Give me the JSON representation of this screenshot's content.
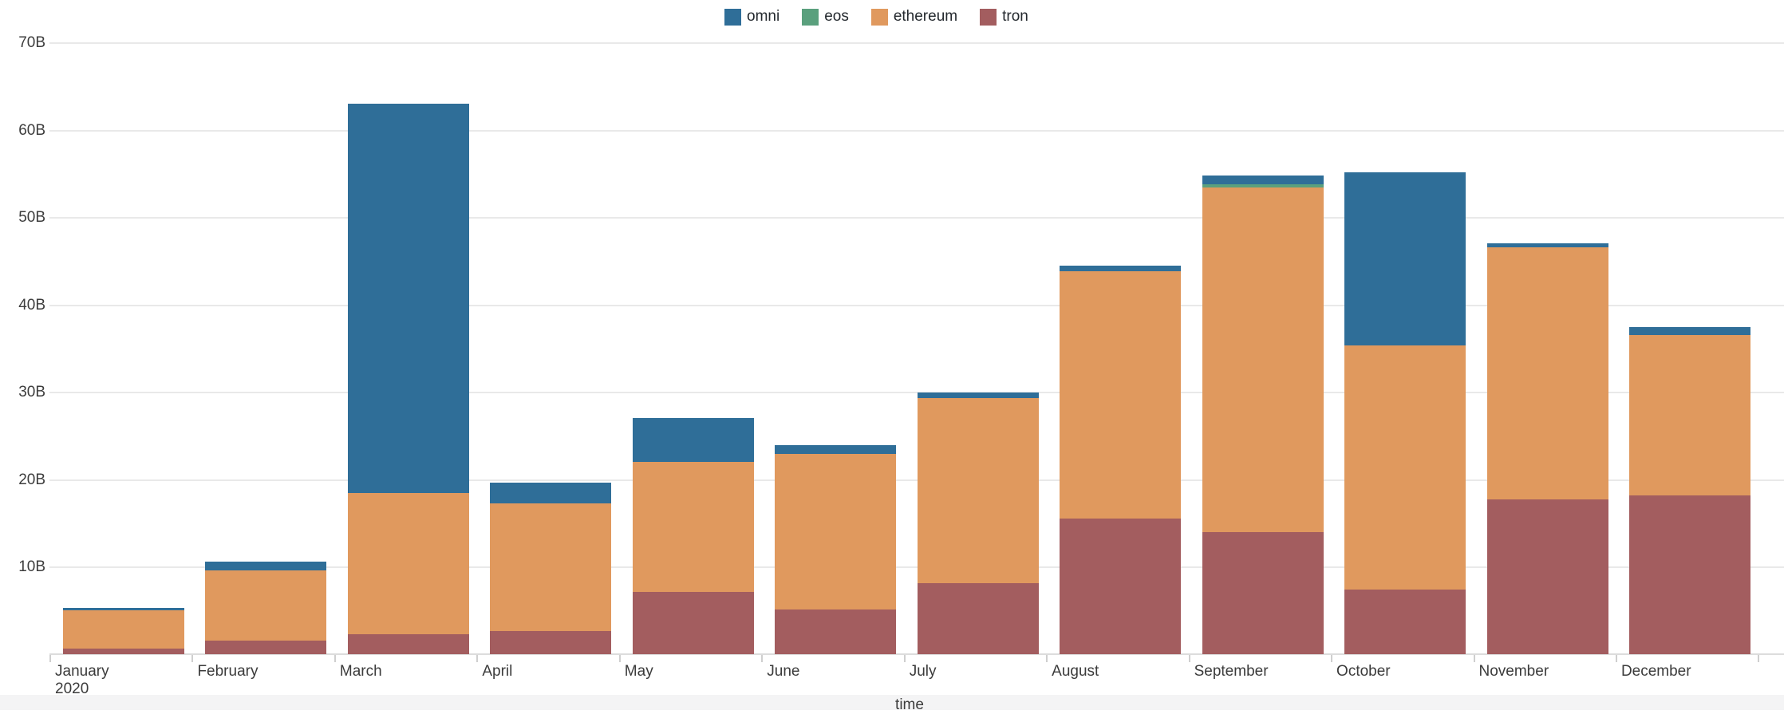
{
  "chart_data": {
    "type": "bar",
    "stacked": true,
    "title": "",
    "xlabel": "time",
    "ylabel": "",
    "unit": "B",
    "grid": true,
    "legend_position": "top-center",
    "ylim": [
      0,
      73
    ],
    "y_axis": {
      "tick_labels": [
        "70B",
        "60B",
        "50B",
        "40B",
        "30B",
        "20B",
        "10B"
      ],
      "tick_step": 10,
      "max_tick": 70
    },
    "categories": [
      {
        "label": "January",
        "sublabel": "2020"
      },
      {
        "label": "February",
        "sublabel": ""
      },
      {
        "label": "March",
        "sublabel": ""
      },
      {
        "label": "April",
        "sublabel": ""
      },
      {
        "label": "May",
        "sublabel": ""
      },
      {
        "label": "June",
        "sublabel": ""
      },
      {
        "label": "July",
        "sublabel": ""
      },
      {
        "label": "August",
        "sublabel": ""
      },
      {
        "label": "September",
        "sublabel": ""
      },
      {
        "label": "October",
        "sublabel": ""
      },
      {
        "label": "November",
        "sublabel": ""
      },
      {
        "label": "December",
        "sublabel": ""
      }
    ],
    "series": [
      {
        "name": "omni",
        "color": "#2f6e98",
        "values": [
          0.2,
          1.0,
          44.6,
          2.4,
          5.0,
          1.0,
          0.6,
          0.6,
          1.0,
          19.8,
          0.5,
          0.9
        ]
      },
      {
        "name": "eos",
        "color": "#5aa07d",
        "values": [
          0,
          0,
          0,
          0,
          0,
          0,
          0,
          0,
          0.3,
          0,
          0,
          0
        ]
      },
      {
        "name": "ethereum",
        "color": "#e0995e",
        "values": [
          4.4,
          8.0,
          16.2,
          14.6,
          14.9,
          17.8,
          21.2,
          28.3,
          39.5,
          28.0,
          28.8,
          18.4
        ]
      },
      {
        "name": "tron",
        "color": "#a35d5f",
        "values": [
          0.7,
          1.6,
          2.3,
          2.7,
          7.2,
          5.2,
          8.2,
          15.6,
          14.0,
          7.4,
          17.8,
          18.2
        ]
      }
    ],
    "stack_order_bottom_to_top": [
      "tron",
      "ethereum",
      "eos",
      "omni"
    ],
    "totals": [
      5.3,
      10.6,
      63.1,
      19.7,
      27.1,
      24.0,
      30.0,
      44.5,
      54.8,
      55.2,
      47.1,
      37.5
    ]
  }
}
